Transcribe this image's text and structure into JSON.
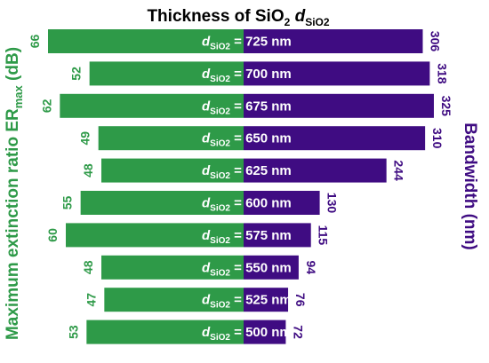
{
  "chart_data": {
    "type": "bar",
    "title_main": "Thickness of SiO",
    "title_sub_num": "2",
    "title_var": "d",
    "title_var_sub": "SiO2",
    "left_axis_label": "Maximum extinction ratio ER",
    "left_axis_label_sub": "max",
    "left_axis_label_unit": " (dB)",
    "right_axis_label": "Bandwidth (nm)",
    "row_label_var": "d",
    "row_label_sub": "SiO2",
    "categories": [
      "725 nm",
      "700 nm",
      "675 nm",
      "650 nm",
      "625 nm",
      "600 nm",
      "575 nm",
      "550 nm",
      "525 nm",
      "500 nm"
    ],
    "series": [
      {
        "name": "Maximum extinction ratio ERmax (dB)",
        "side": "left",
        "values": [
          66,
          52,
          62,
          49,
          48,
          55,
          60,
          48,
          47,
          53
        ]
      },
      {
        "name": "Bandwidth (nm)",
        "side": "right",
        "values": [
          306,
          318,
          325,
          310,
          244,
          130,
          115,
          94,
          76,
          72
        ]
      }
    ],
    "colors": {
      "left": "#2e9a48",
      "right": "#3f0c82"
    }
  }
}
